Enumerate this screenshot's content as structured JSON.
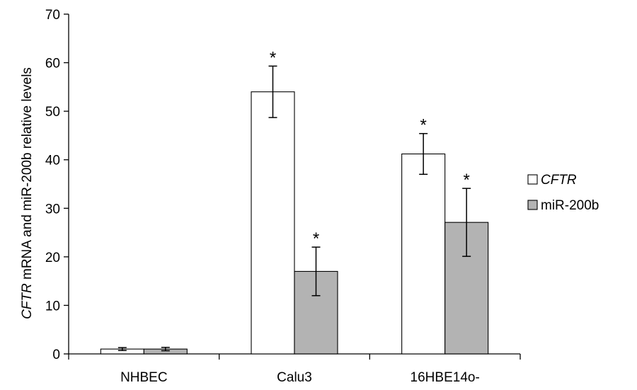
{
  "chart_data": {
    "type": "bar",
    "categories": [
      "NHBEC",
      "Calu3",
      "16HBE14o-"
    ],
    "series": [
      {
        "name": "CFTR",
        "italic": true,
        "color": "#ffffff",
        "values": [
          1,
          54,
          41.2
        ],
        "errors": [
          0.3,
          5.3,
          4.2
        ],
        "significance": [
          "",
          "*",
          "*"
        ]
      },
      {
        "name": "miR-200b",
        "italic": false,
        "color": "#b3b3b3",
        "values": [
          1,
          17,
          27.1
        ],
        "errors": [
          0.35,
          5.0,
          7.0
        ],
        "significance": [
          "",
          "*",
          "*"
        ]
      }
    ],
    "ylabel_italic": "CFTR",
    "ylabel_rest": " mRNA and miR-200b relative levels",
    "ylim": [
      0,
      70
    ],
    "yticks": [
      0,
      10,
      20,
      30,
      40,
      50,
      60,
      70
    ],
    "grid": false,
    "legend_position": "right"
  }
}
